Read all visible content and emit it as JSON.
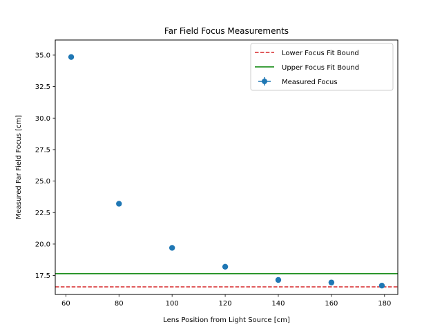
{
  "chart_data": {
    "type": "scatter",
    "title": "Far Field Focus Measurements",
    "xlabel": "Lens Position from Light Source [cm]",
    "ylabel": "Measured Far Field Focus [cm]",
    "xlim": [
      56,
      185
    ],
    "ylim": [
      16.0,
      36.2
    ],
    "xticks": [
      60,
      80,
      100,
      120,
      140,
      160,
      180
    ],
    "xtick_labels": [
      "60",
      "80",
      "100",
      "120",
      "140",
      "160",
      "180"
    ],
    "yticks": [
      17.5,
      20.0,
      22.5,
      25.0,
      27.5,
      30.0,
      32.5,
      35.0
    ],
    "ytick_labels": [
      "17.5",
      "20.0",
      "22.5",
      "25.0",
      "27.5",
      "30.0",
      "32.5",
      "35.0"
    ],
    "grid": false,
    "legend_position": "top-right",
    "series": [
      {
        "name": "Measured Focus",
        "kind": "errorbar-points",
        "color": "#1f77b4",
        "x": [
          62,
          80,
          100,
          120,
          140,
          160,
          179
        ],
        "y": [
          34.85,
          23.2,
          19.7,
          18.2,
          17.15,
          16.95,
          16.7
        ]
      }
    ],
    "reference_lines": [
      {
        "name": "Lower Focus Fit Bound",
        "orientation": "horizontal",
        "y": 16.6,
        "color": "#d62728",
        "style": "dashed"
      },
      {
        "name": "Upper Focus Fit Bound",
        "orientation": "horizontal",
        "y": 17.65,
        "color": "#008000",
        "style": "solid"
      }
    ],
    "legend": [
      {
        "label": "Lower Focus Fit Bound",
        "kind": "dashed-line",
        "color": "#d62728"
      },
      {
        "label": "Upper Focus Fit Bound",
        "kind": "solid-line",
        "color": "#008000"
      },
      {
        "label": "Measured Focus",
        "kind": "errorbar-marker",
        "color": "#1f77b4"
      }
    ]
  }
}
